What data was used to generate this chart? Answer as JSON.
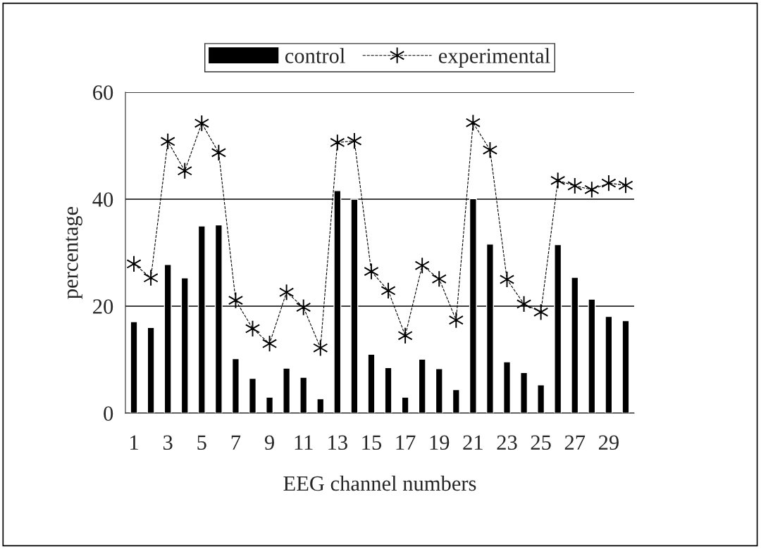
{
  "chart_data": {
    "type": "bar",
    "xlabel": "EEG channel numbers",
    "ylabel": "percentage",
    "categories": [
      "1",
      null,
      "3",
      null,
      "5",
      null,
      "7",
      null,
      "9",
      null,
      "11",
      null,
      "13",
      null,
      "15",
      null,
      "17",
      null,
      "19",
      null,
      "21",
      null,
      "23",
      null,
      "25",
      null,
      "27",
      null,
      "29",
      null
    ],
    "series": [
      {
        "name": "control",
        "color": "#000000",
        "values": [
          17.1,
          16.0,
          27.8,
          25.3,
          35.0,
          35.2,
          10.2,
          6.5,
          3.0,
          8.4,
          6.7,
          2.7,
          41.6,
          40.0,
          11.0,
          8.5,
          3.0,
          10.1,
          8.3,
          4.4,
          40.1,
          31.6,
          9.6,
          7.6,
          5.3,
          31.5,
          25.4,
          21.3,
          18.1,
          17.3
        ]
      },
      {
        "name": "experimental",
        "color": "#000000",
        "type": "line",
        "marker": "cross",
        "line_style": "dashed",
        "values": [
          27.9,
          25.3,
          50.8,
          45.3,
          54.2,
          48.7,
          21.1,
          15.8,
          13.0,
          22.6,
          19.8,
          12.2,
          50.6,
          50.9,
          26.5,
          22.9,
          14.5,
          27.6,
          25.1,
          17.4,
          54.3,
          49.2,
          25.0,
          20.4,
          18.9,
          43.5,
          42.5,
          41.8,
          43.0,
          42.6
        ]
      }
    ],
    "ylim": [
      0,
      60
    ],
    "yticks": [
      0,
      20,
      40,
      60
    ],
    "grid": "y",
    "legend": "top"
  }
}
